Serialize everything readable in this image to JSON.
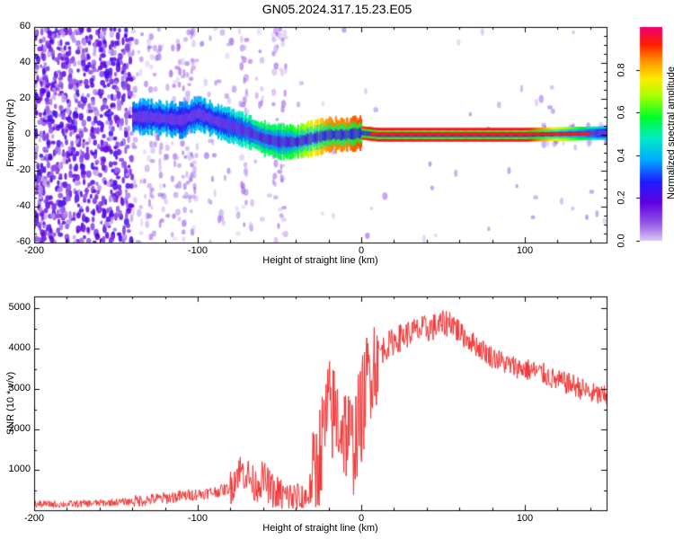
{
  "title": "GN05.2024.317.15.23.E05",
  "colorbar": {
    "label": "Normalized spectral amplitude",
    "ticks": [
      "0.0",
      "0.2",
      "0.4",
      "0.6",
      "0.8"
    ]
  },
  "chart_data": [
    {
      "type": "heatmap",
      "xlabel": "Height of straight line (km)",
      "ylabel": "Frequency (Hz)",
      "xlim": [
        -200,
        150
      ],
      "ylim": [
        -60,
        60
      ],
      "xticks": [
        -200,
        -100,
        0,
        100
      ],
      "yticks": [
        60,
        40,
        20,
        0,
        -20,
        -40,
        -60
      ],
      "ridge": {
        "x": [
          -140,
          -130,
          -120,
          -110,
          -100,
          -90,
          -80,
          -70,
          -60,
          -50,
          -40,
          -30,
          -20,
          -10,
          0,
          10,
          50,
          100,
          150
        ],
        "freq_hz": [
          10,
          10,
          9,
          8,
          12,
          8,
          5,
          2,
          -2,
          -4,
          -4,
          -2,
          0,
          0,
          1,
          0,
          0,
          0,
          1
        ],
        "amplitude": [
          0.35,
          0.4,
          0.4,
          0.35,
          0.4,
          0.4,
          0.45,
          0.5,
          0.55,
          0.55,
          0.6,
          0.75,
          0.85,
          0.85,
          0.9,
          0.95,
          0.95,
          0.95,
          0.4
        ]
      }
    },
    {
      "type": "line",
      "xlabel": "Height of straight line (km)",
      "ylabel": "SNR (10 * v/v)",
      "xlim": [
        -200,
        150
      ],
      "ylim": [
        0,
        5300
      ],
      "xticks": [
        -200,
        -100,
        0,
        100
      ],
      "yticks": [
        5000,
        4000,
        3000,
        2000,
        1000
      ],
      "color": "#ef3030",
      "series": [
        {
          "x": [
            -200,
            -180,
            -160,
            -140,
            -120,
            -110,
            -100,
            -90,
            -80,
            -75,
            -70,
            -65,
            -60,
            -55,
            -50,
            -45,
            -40,
            -35,
            -30,
            -25,
            -20,
            -15,
            -10,
            -5,
            0,
            5,
            10,
            20,
            30,
            40,
            50,
            55,
            60,
            70,
            80,
            90,
            100,
            110,
            120,
            130,
            140,
            150
          ],
          "y": [
            150,
            150,
            180,
            220,
            300,
            350,
            400,
            450,
            550,
            1000,
            900,
            600,
            800,
            500,
            400,
            300,
            300,
            250,
            600,
            1500,
            2500,
            2300,
            2000,
            1600,
            2400,
            3500,
            3900,
            4200,
            4400,
            4500,
            4600,
            4700,
            4400,
            4100,
            3800,
            3600,
            3500,
            3400,
            3200,
            3100,
            2900,
            2800
          ]
        }
      ]
    }
  ]
}
